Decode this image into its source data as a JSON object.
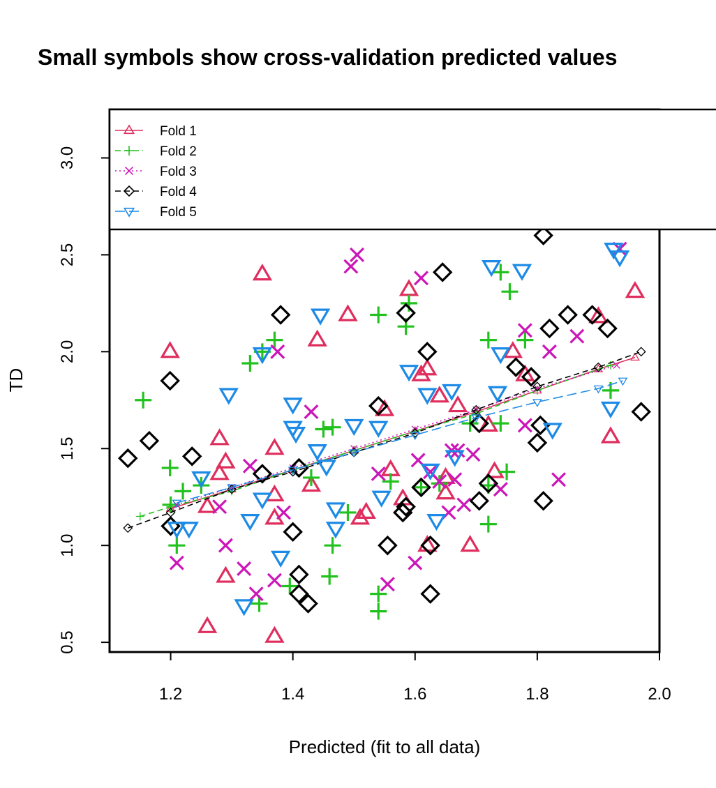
{
  "chart_data": {
    "type": "scatter",
    "title": "Small symbols show cross-validation predicted values",
    "xlabel": "Predicted (fit to all data)",
    "ylabel": "TD",
    "xlim": [
      1.1,
      2.0
    ],
    "ylim": [
      0.45,
      3.25
    ],
    "xticks": [
      "1.2",
      "1.4",
      "1.6",
      "1.8",
      "2.0"
    ],
    "yticks": [
      "0.5",
      "1.0",
      "1.5",
      "2.0",
      "2.5",
      "3.0"
    ],
    "legend_position": "top-left",
    "series": [
      {
        "name": "Fold 1",
        "color": "#DF2E5E",
        "symbol": "triangle-up",
        "line": "solid",
        "points": [
          [
            1.199,
            2.0
          ],
          [
            1.35,
            2.4
          ],
          [
            1.49,
            2.19
          ],
          [
            1.44,
            2.06
          ],
          [
            1.59,
            2.32
          ],
          [
            1.96,
            2.31
          ],
          [
            1.9,
            2.18
          ],
          [
            1.76,
            2.0
          ],
          [
            1.62,
            1.91
          ],
          [
            1.61,
            1.88
          ],
          [
            1.78,
            1.88
          ],
          [
            1.28,
            1.55
          ],
          [
            1.37,
            1.5
          ],
          [
            1.29,
            1.43
          ],
          [
            1.28,
            1.37
          ],
          [
            1.37,
            1.26
          ],
          [
            1.43,
            1.31
          ],
          [
            1.26,
            1.2
          ],
          [
            1.29,
            0.84
          ],
          [
            1.37,
            1.14
          ],
          [
            1.51,
            1.14
          ],
          [
            1.52,
            1.17
          ],
          [
            1.56,
            1.39
          ],
          [
            1.58,
            1.24
          ],
          [
            1.65,
            1.35
          ],
          [
            1.65,
            1.27
          ],
          [
            1.69,
            1.0
          ],
          [
            1.62,
            1.0
          ],
          [
            1.73,
            1.38
          ],
          [
            1.72,
            1.62
          ],
          [
            1.64,
            1.77
          ],
          [
            1.67,
            1.72
          ],
          [
            1.55,
            1.7
          ],
          [
            1.92,
            1.56
          ],
          [
            1.26,
            0.58
          ],
          [
            1.37,
            0.53
          ]
        ],
        "cv_line": [
          [
            1.2,
            1.19
          ],
          [
            1.3,
            1.29
          ],
          [
            1.4,
            1.39
          ],
          [
            1.5,
            1.49
          ],
          [
            1.6,
            1.59
          ],
          [
            1.7,
            1.69
          ],
          [
            1.8,
            1.8
          ],
          [
            1.9,
            1.91
          ],
          [
            1.96,
            1.97
          ]
        ]
      },
      {
        "name": "Fold 2",
        "color": "#22C21E",
        "symbol": "plus",
        "line": "dashed",
        "points": [
          [
            1.155,
            1.75
          ],
          [
            1.199,
            1.4
          ],
          [
            1.21,
            1.0
          ],
          [
            1.22,
            1.28
          ],
          [
            1.25,
            1.31
          ],
          [
            1.33,
            1.94
          ],
          [
            1.37,
            2.06
          ],
          [
            1.35,
            2.0
          ],
          [
            1.54,
            2.19
          ],
          [
            1.585,
            2.13
          ],
          [
            1.59,
            2.25
          ],
          [
            1.74,
            2.41
          ],
          [
            1.755,
            2.31
          ],
          [
            1.72,
            2.06
          ],
          [
            1.78,
            2.06
          ],
          [
            1.45,
            1.6
          ],
          [
            1.465,
            1.61
          ],
          [
            1.43,
            1.35
          ],
          [
            1.49,
            1.17
          ],
          [
            1.465,
            1.0
          ],
          [
            1.46,
            0.84
          ],
          [
            1.395,
            0.79
          ],
          [
            1.345,
            0.7
          ],
          [
            1.54,
            0.75
          ],
          [
            1.54,
            0.66
          ],
          [
            1.56,
            1.33
          ],
          [
            1.61,
            1.3
          ],
          [
            1.64,
            1.32
          ],
          [
            1.72,
            1.31
          ],
          [
            1.72,
            1.11
          ],
          [
            1.75,
            1.38
          ],
          [
            1.74,
            1.63
          ],
          [
            1.69,
            1.63
          ],
          [
            1.92,
            1.8
          ],
          [
            1.2,
            1.21
          ]
        ],
        "cv_line": [
          [
            1.15,
            1.15
          ],
          [
            1.2,
            1.2
          ],
          [
            1.3,
            1.28
          ],
          [
            1.4,
            1.39
          ],
          [
            1.5,
            1.49
          ],
          [
            1.6,
            1.59
          ],
          [
            1.7,
            1.68
          ],
          [
            1.8,
            1.8
          ],
          [
            1.92,
            1.93
          ]
        ]
      },
      {
        "name": "Fold 3",
        "color": "#CC16B8",
        "symbol": "cross",
        "line": "dotted",
        "points": [
          [
            1.505,
            2.5
          ],
          [
            1.495,
            2.44
          ],
          [
            1.375,
            2.0
          ],
          [
            1.61,
            2.38
          ],
          [
            1.78,
            2.11
          ],
          [
            1.82,
            2.0
          ],
          [
            1.865,
            2.08
          ],
          [
            1.935,
            2.53
          ],
          [
            1.43,
            1.69
          ],
          [
            1.33,
            1.41
          ],
          [
            1.28,
            1.2
          ],
          [
            1.29,
            1.0
          ],
          [
            1.21,
            0.91
          ],
          [
            1.32,
            0.88
          ],
          [
            1.34,
            0.75
          ],
          [
            1.37,
            0.82
          ],
          [
            1.385,
            1.17
          ],
          [
            1.54,
            1.37
          ],
          [
            1.555,
            0.8
          ],
          [
            1.6,
            0.91
          ],
          [
            1.605,
            1.44
          ],
          [
            1.625,
            1.38
          ],
          [
            1.64,
            1.33
          ],
          [
            1.655,
            1.17
          ],
          [
            1.665,
            1.34
          ],
          [
            1.66,
            1.49
          ],
          [
            1.67,
            1.49
          ],
          [
            1.68,
            1.21
          ],
          [
            1.695,
            1.47
          ],
          [
            1.74,
            1.29
          ],
          [
            1.78,
            1.62
          ],
          [
            1.835,
            1.34
          ]
        ],
        "cv_line": [
          [
            1.21,
            1.21
          ],
          [
            1.3,
            1.3
          ],
          [
            1.4,
            1.4
          ],
          [
            1.5,
            1.5
          ],
          [
            1.6,
            1.6
          ],
          [
            1.7,
            1.7
          ],
          [
            1.8,
            1.81
          ],
          [
            1.93,
            1.93
          ]
        ]
      },
      {
        "name": "Fold 4",
        "color": "#000000",
        "symbol": "diamond",
        "line": "dashed",
        "points": [
          [
            1.13,
            1.45
          ],
          [
            1.165,
            1.54
          ],
          [
            1.199,
            1.85
          ],
          [
            1.2,
            1.1
          ],
          [
            1.235,
            1.46
          ],
          [
            1.38,
            2.19
          ],
          [
            1.35,
            1.37
          ],
          [
            1.4,
            1.07
          ],
          [
            1.41,
            1.4
          ],
          [
            1.41,
            0.85
          ],
          [
            1.41,
            0.75
          ],
          [
            1.425,
            0.7
          ],
          [
            1.54,
            1.72
          ],
          [
            1.555,
            1.0
          ],
          [
            1.58,
            1.17
          ],
          [
            1.585,
            1.2
          ],
          [
            1.585,
            2.2
          ],
          [
            1.62,
            2.0
          ],
          [
            1.645,
            2.41
          ],
          [
            1.61,
            1.3
          ],
          [
            1.625,
            1.0
          ],
          [
            1.625,
            0.75
          ],
          [
            1.705,
            1.63
          ],
          [
            1.705,
            1.23
          ],
          [
            1.72,
            1.32
          ],
          [
            1.765,
            1.92
          ],
          [
            1.79,
            1.87
          ],
          [
            1.8,
            1.53
          ],
          [
            1.805,
            1.62
          ],
          [
            1.81,
            1.23
          ],
          [
            1.82,
            2.12
          ],
          [
            1.85,
            2.19
          ],
          [
            1.89,
            2.19
          ],
          [
            1.915,
            2.12
          ],
          [
            1.97,
            1.69
          ],
          [
            1.81,
            2.6
          ]
        ],
        "cv_line": [
          [
            1.13,
            1.09
          ],
          [
            1.2,
            1.17
          ],
          [
            1.3,
            1.29
          ],
          [
            1.4,
            1.38
          ],
          [
            1.5,
            1.48
          ],
          [
            1.6,
            1.58
          ],
          [
            1.7,
            1.7
          ],
          [
            1.8,
            1.82
          ],
          [
            1.9,
            1.92
          ],
          [
            1.97,
            2.0
          ]
        ]
      },
      {
        "name": "Fold 5",
        "color": "#1C8AE6",
        "symbol": "triangle-down",
        "line": "longdash",
        "points": [
          [
            1.21,
            1.09
          ],
          [
            1.23,
            1.09
          ],
          [
            1.25,
            1.35
          ],
          [
            1.295,
            1.78
          ],
          [
            1.33,
            1.13
          ],
          [
            1.32,
            0.69
          ],
          [
            1.35,
            1.24
          ],
          [
            1.35,
            1.99
          ],
          [
            1.38,
            0.94
          ],
          [
            1.4,
            1.73
          ],
          [
            1.4,
            1.61
          ],
          [
            1.405,
            1.58
          ],
          [
            1.445,
            2.19
          ],
          [
            1.44,
            1.49
          ],
          [
            1.455,
            1.41
          ],
          [
            1.47,
            1.19
          ],
          [
            1.47,
            1.09
          ],
          [
            1.5,
            1.62
          ],
          [
            1.54,
            1.61
          ],
          [
            1.545,
            1.25
          ],
          [
            1.59,
            1.9
          ],
          [
            1.62,
            1.78
          ],
          [
            1.625,
            1.39
          ],
          [
            1.635,
            1.13
          ],
          [
            1.66,
            1.8
          ],
          [
            1.665,
            1.46
          ],
          [
            1.725,
            2.44
          ],
          [
            1.735,
            1.79
          ],
          [
            1.74,
            1.99
          ],
          [
            1.775,
            2.42
          ],
          [
            1.825,
            1.6
          ],
          [
            1.92,
            1.71
          ],
          [
            1.925,
            2.53
          ],
          [
            1.935,
            2.49
          ]
        ],
        "cv_line": [
          [
            1.21,
            1.22
          ],
          [
            1.3,
            1.3
          ],
          [
            1.4,
            1.39
          ],
          [
            1.5,
            1.48
          ],
          [
            1.6,
            1.57
          ],
          [
            1.7,
            1.66
          ],
          [
            1.8,
            1.74
          ],
          [
            1.9,
            1.81
          ],
          [
            1.94,
            1.85
          ]
        ]
      }
    ]
  }
}
